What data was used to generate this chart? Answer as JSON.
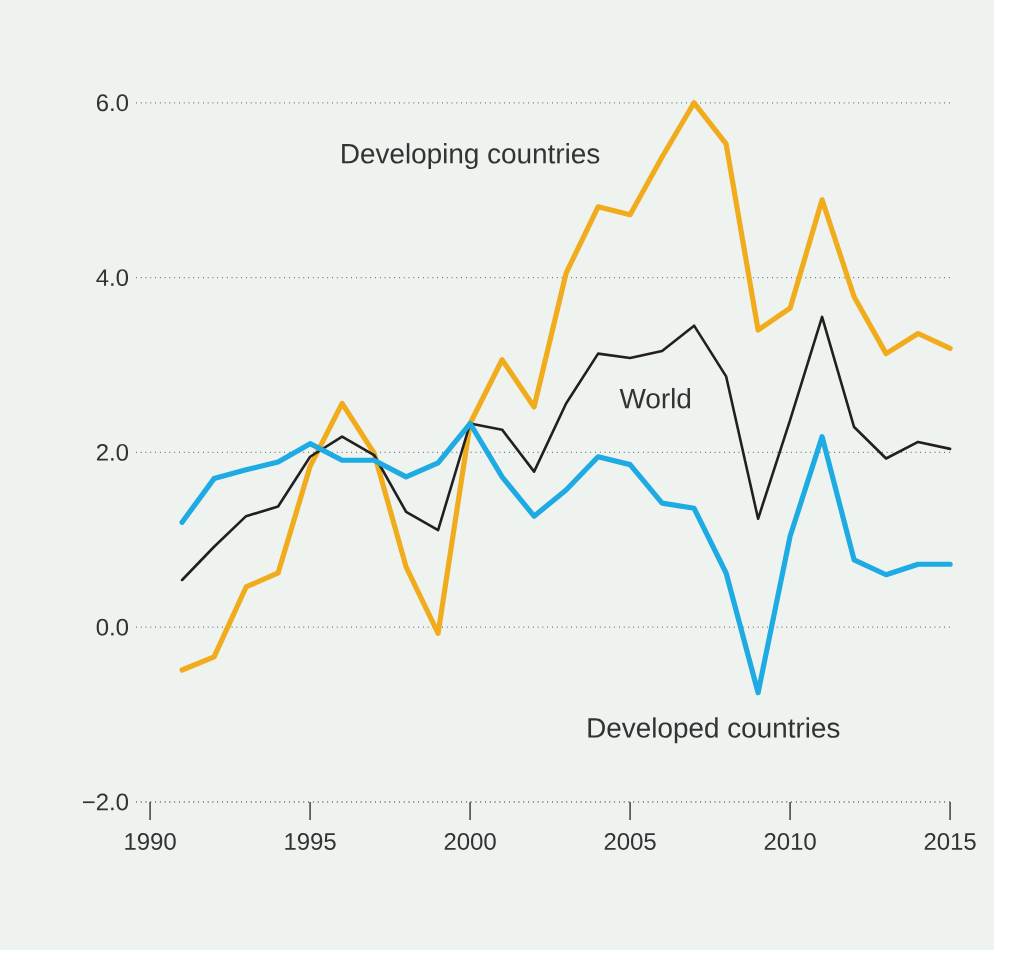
{
  "chart_data": {
    "type": "line",
    "x": [
      1991,
      1992,
      1993,
      1994,
      1995,
      1996,
      1997,
      1998,
      1999,
      2000,
      2001,
      2002,
      2003,
      2004,
      2005,
      2006,
      2007,
      2008,
      2009,
      2010,
      2011,
      2012,
      2013,
      2014,
      2015
    ],
    "series": [
      {
        "name": "Developing countries",
        "color": "#f0ac1c",
        "values": [
          -0.49,
          -0.34,
          0.46,
          0.62,
          1.84,
          2.56,
          1.99,
          0.69,
          -0.07,
          2.33,
          3.06,
          2.52,
          4.05,
          4.81,
          4.72,
          5.38,
          6.0,
          5.53,
          3.4,
          3.65,
          4.89,
          3.78,
          3.13,
          3.36,
          3.19
        ]
      },
      {
        "name": "World",
        "color": "#231f20",
        "values": [
          0.54,
          0.92,
          1.27,
          1.38,
          1.95,
          2.18,
          1.97,
          1.32,
          1.11,
          2.33,
          2.26,
          1.78,
          2.56,
          3.13,
          3.08,
          3.16,
          3.45,
          2.87,
          1.24,
          2.37,
          3.55,
          2.29,
          1.93,
          2.12,
          2.04
        ]
      },
      {
        "name": "Developed countries",
        "color": "#1eaae2",
        "values": [
          1.2,
          1.7,
          1.8,
          1.89,
          2.1,
          1.91,
          1.91,
          1.72,
          1.88,
          2.33,
          1.72,
          1.27,
          1.57,
          1.95,
          1.86,
          1.42,
          1.36,
          0.62,
          -0.75,
          1.04,
          2.18,
          0.77,
          0.6,
          0.72,
          0.72
        ]
      }
    ],
    "xlim": [
      1989.56,
      2015.06
    ],
    "ylim": [
      -2,
      6
    ],
    "xticks": [
      1990,
      1995,
      2000,
      2005,
      2010,
      2015
    ],
    "yticks": [
      {
        "value": -2,
        "label": "−2.0"
      },
      {
        "value": 0,
        "label": "0.0"
      },
      {
        "value": 2,
        "label": "2.0"
      },
      {
        "value": 4,
        "label": "4.0"
      },
      {
        "value": 6,
        "label": "6.0"
      }
    ],
    "grid": "y",
    "legend": false,
    "line_style": "solid",
    "marker": "none"
  }
}
